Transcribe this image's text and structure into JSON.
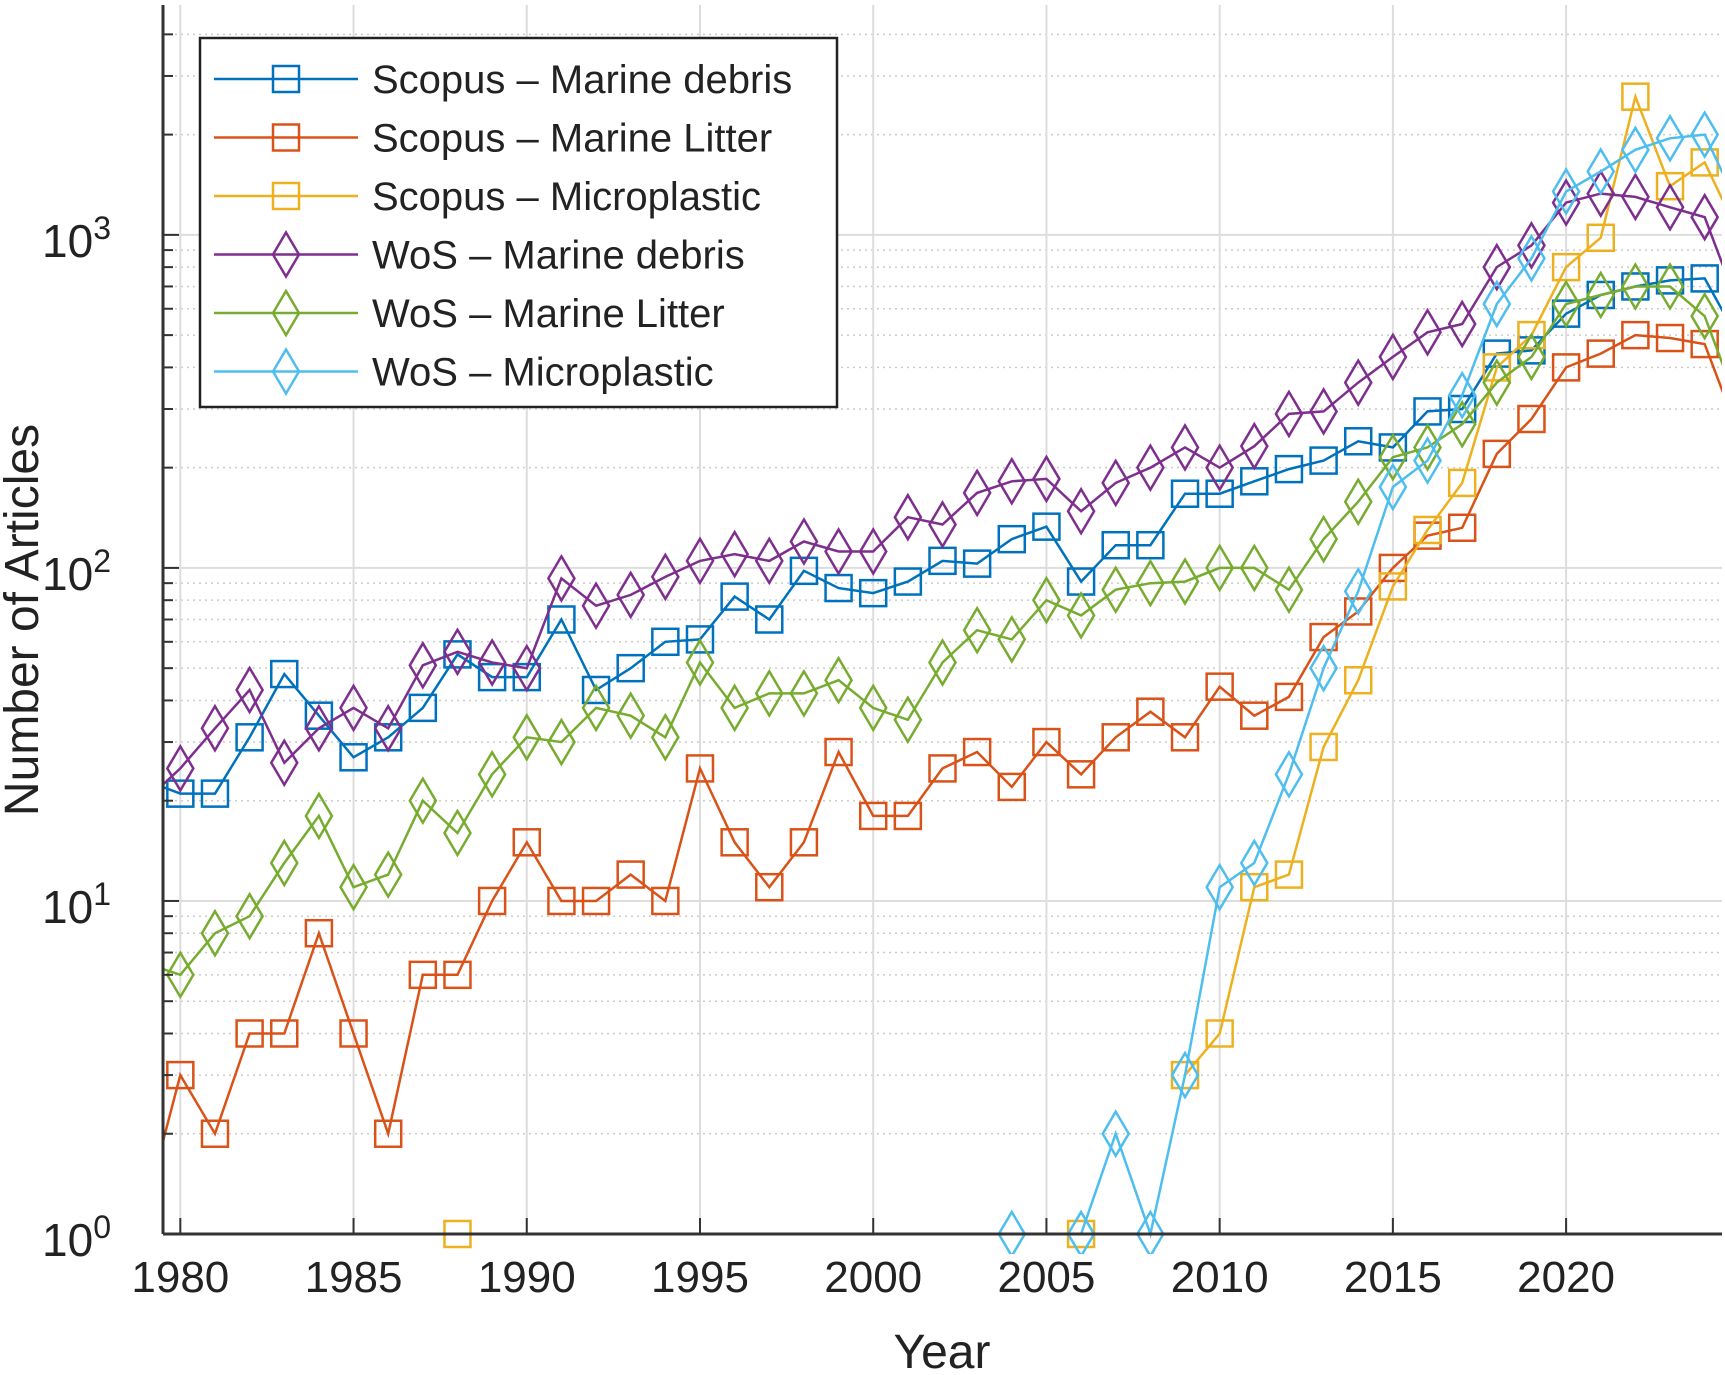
{
  "chart_data": {
    "type": "line",
    "title": "",
    "xlabel": "Year",
    "ylabel": "Number of Articles",
    "yscale": "log",
    "xlim": [
      1979.5,
      2024.5
    ],
    "ylim": [
      1,
      4900
    ],
    "grid": true,
    "legend_position": "top-left",
    "x_ticks": [
      1980,
      1985,
      1990,
      1995,
      2000,
      2005,
      2010,
      2015,
      2020
    ],
    "y_ticks": [
      {
        "base": "10",
        "exp": "0",
        "value": 1
      },
      {
        "base": "10",
        "exp": "1",
        "value": 10
      },
      {
        "base": "10",
        "exp": "2",
        "value": 100
      },
      {
        "base": "10",
        "exp": "3",
        "value": 1000
      }
    ],
    "x": [
      1979,
      1980,
      1981,
      1982,
      1983,
      1984,
      1985,
      1986,
      1987,
      1988,
      1989,
      1990,
      1991,
      1992,
      1993,
      1994,
      1995,
      1996,
      1997,
      1998,
      1999,
      2000,
      2001,
      2002,
      2003,
      2004,
      2005,
      2006,
      2007,
      2008,
      2009,
      2010,
      2011,
      2012,
      2013,
      2014,
      2015,
      2016,
      2017,
      2018,
      2019,
      2020,
      2021,
      2022,
      2023,
      2024,
      2025
    ],
    "series": [
      {
        "name": "Scopus – Marine debris",
        "color": "#0072BD",
        "marker": "square",
        "values": [
          23,
          21,
          21,
          31,
          48,
          36,
          27,
          31,
          38,
          55,
          47,
          47,
          70,
          43,
          50,
          60,
          61,
          82,
          70,
          98,
          87,
          84,
          91,
          105,
          103,
          122,
          133,
          91,
          117,
          117,
          167,
          167,
          182,
          198,
          210,
          240,
          230,
          295,
          300,
          440,
          450,
          580,
          660,
          700,
          730,
          740,
          480
        ]
      },
      {
        "name": "Scopus – Marine Litter",
        "color": "#D95319",
        "marker": "square",
        "values": [
          1.2,
          3,
          2,
          4,
          4,
          8,
          4,
          2,
          6,
          6,
          10,
          15,
          10,
          10,
          12,
          10,
          25,
          15,
          11,
          15,
          28,
          18,
          18,
          25,
          28,
          22,
          30,
          24,
          31,
          37,
          31,
          44,
          36,
          41,
          62,
          74,
          100,
          125,
          132,
          220,
          280,
          400,
          440,
          500,
          490,
          470,
          250
        ]
      },
      {
        "name": "Scopus – Microplastic",
        "color": "#EDB120",
        "marker": "square",
        "values": [
          null,
          null,
          null,
          null,
          null,
          null,
          null,
          null,
          null,
          1,
          null,
          null,
          null,
          null,
          null,
          null,
          null,
          null,
          null,
          null,
          null,
          null,
          null,
          null,
          null,
          null,
          null,
          1,
          null,
          null,
          3,
          4,
          11,
          12,
          29,
          46,
          88,
          130,
          180,
          400,
          500,
          800,
          980,
          2600,
          1400,
          1650,
          1000
        ]
      },
      {
        "name": "WoS – Marine debris",
        "color": "#7E2F8E",
        "marker": "diamond",
        "values": [
          20,
          25,
          33,
          43,
          26,
          33,
          38,
          33,
          51,
          56,
          52,
          50,
          93,
          77,
          83,
          94,
          105,
          110,
          105,
          120,
          112,
          112,
          142,
          135,
          168,
          182,
          185,
          148,
          180,
          200,
          230,
          200,
          232,
          290,
          295,
          360,
          430,
          510,
          540,
          800,
          930,
          1250,
          1330,
          1300,
          1210,
          1130,
          600
        ]
      },
      {
        "name": "WoS – Marine Litter",
        "color": "#77AC30",
        "marker": "diamond",
        "values": [
          6.5,
          6,
          8,
          9,
          13,
          18,
          11,
          12,
          20,
          16,
          24,
          31,
          30,
          38,
          36,
          31,
          52,
          38,
          42,
          42,
          46,
          38,
          35,
          52,
          65,
          61,
          80,
          72,
          86,
          90,
          91,
          100,
          100,
          86,
          122,
          158,
          215,
          230,
          270,
          360,
          430,
          620,
          660,
          700,
          700,
          570,
          300
        ]
      },
      {
        "name": "WoS – Microplastic",
        "color": "#4DBEEE",
        "marker": "diamond",
        "values": [
          null,
          null,
          null,
          null,
          null,
          null,
          null,
          null,
          null,
          null,
          null,
          null,
          null,
          null,
          null,
          null,
          null,
          null,
          null,
          null,
          null,
          null,
          null,
          null,
          null,
          1,
          null,
          1,
          2,
          1,
          3,
          11,
          13,
          24,
          50,
          85,
          175,
          210,
          330,
          620,
          850,
          1350,
          1550,
          1800,
          1950,
          2000,
          1200
        ]
      }
    ]
  }
}
